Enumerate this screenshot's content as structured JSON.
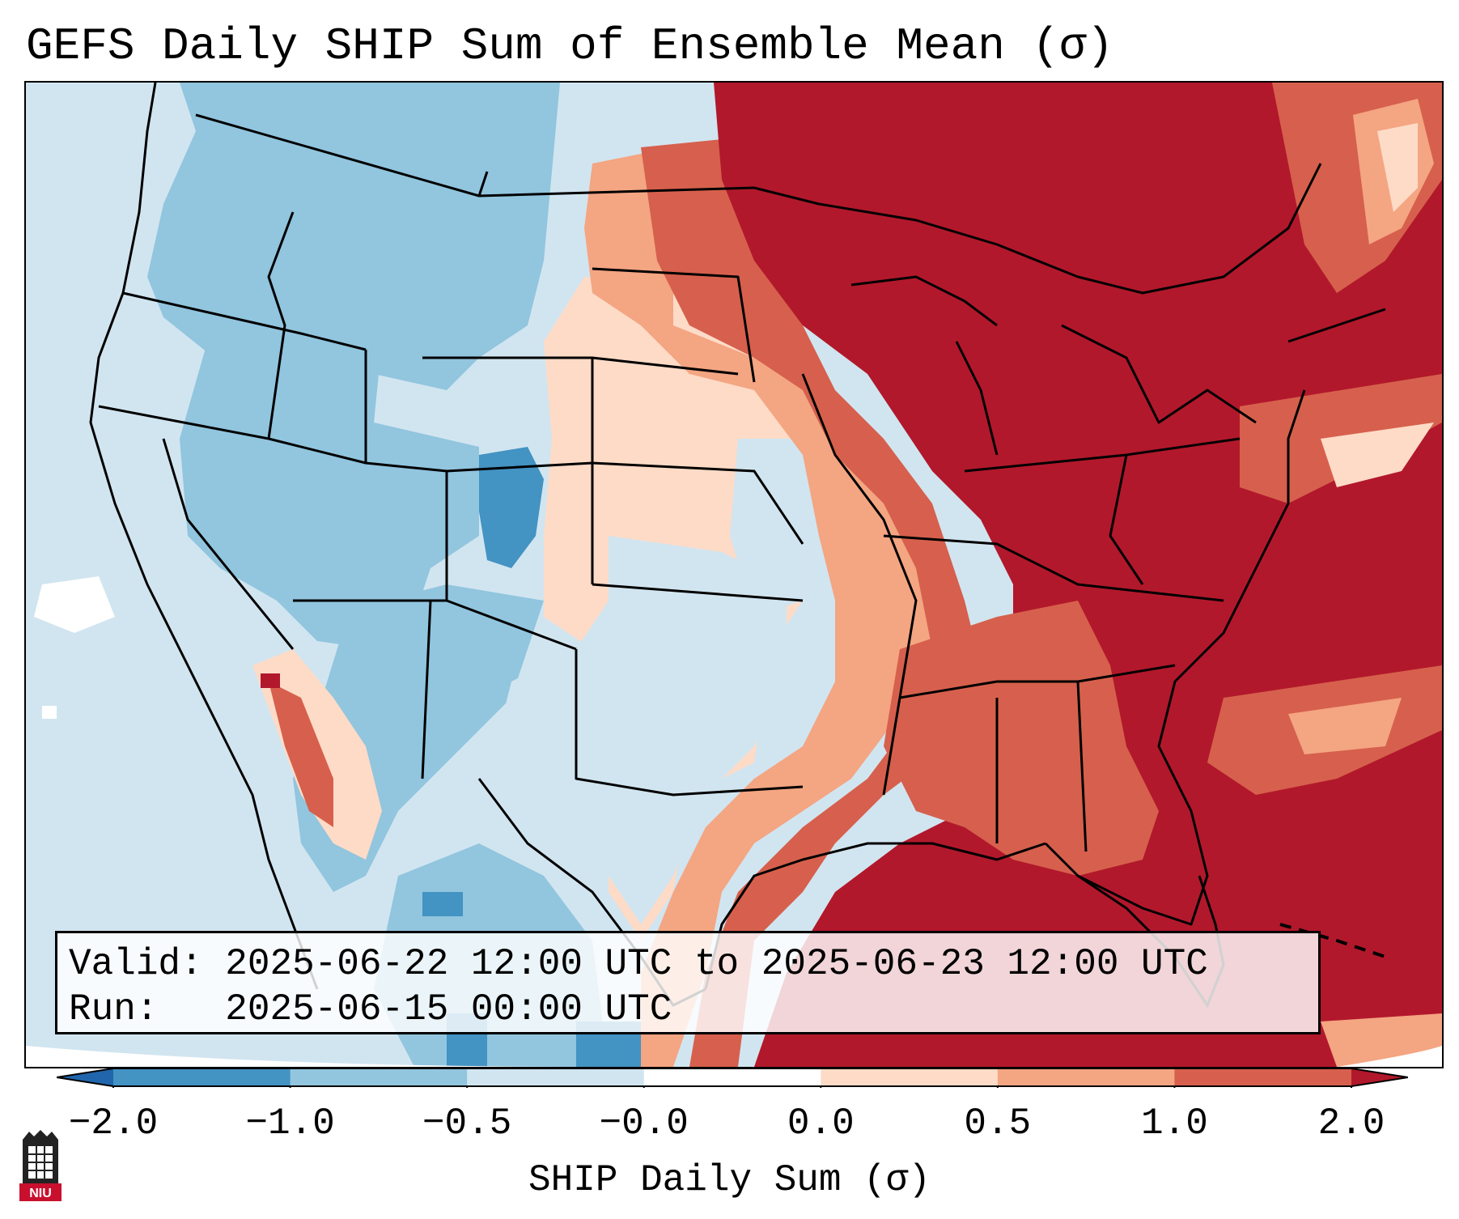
{
  "title": "GEFS Daily SHIP Sum of Ensemble Mean (σ)",
  "info": {
    "valid_label": "Valid:",
    "valid_range": "2025-06-22 12:00 UTC to 2025-06-23 12:00 UTC",
    "run_label": "Run:",
    "run_time": "2025-06-15 00:00 UTC"
  },
  "colorbar": {
    "label": "SHIP Daily Sum (σ)",
    "ticks": [
      "−2.0",
      "−1.0",
      "−0.5",
      "−0.0",
      "0.0",
      "0.5",
      "1.0",
      "2.0"
    ],
    "bins": [
      {
        "range": "< -2.0",
        "color": "#2166ac"
      },
      {
        "range": "-2.0 to -1.0",
        "color": "#4393c3"
      },
      {
        "range": "-1.0 to -0.5",
        "color": "#92c5de"
      },
      {
        "range": "-0.5 to -0.0",
        "color": "#d1e5f0"
      },
      {
        "range": "-0.0 to 0.0",
        "color": "#ffffff"
      },
      {
        "range": "0.0 to 0.5",
        "color": "#fddbc7"
      },
      {
        "range": "0.5 to 1.0",
        "color": "#f4a582"
      },
      {
        "range": "1.0 to 2.0",
        "color": "#d6604d"
      },
      {
        "range": "> 2.0",
        "color": "#b2182b"
      }
    ]
  },
  "map": {
    "region": "Contiguous United States",
    "field": "SHIP daily sum anomaly (σ)",
    "regions": [
      {
        "name": "Pacific Ocean / West Coast",
        "bin": "-0.5 to -0.0"
      },
      {
        "name": "Northern Rockies / Idaho / Montana",
        "bin": "-1.0 to -0.5"
      },
      {
        "name": "Colorado core",
        "bin": "-2.0 to -1.0"
      },
      {
        "name": "Northern Plains (Dakotas)",
        "bin": "0.5 to 1.0"
      },
      {
        "name": "Upper Midwest / Great Lakes / Northeast",
        "bin": "> 2.0"
      },
      {
        "name": "Ohio Valley / Southeast",
        "bin": "> 2.0"
      },
      {
        "name": "Central Plains (Nebraska / Kansas)",
        "bin": "0.0 to 0.5"
      },
      {
        "name": "Texas / Oklahoma",
        "bin": "-0.5 to -0.0"
      },
      {
        "name": "Gulf Coast / Deep South",
        "bin": "1.0 to 2.0"
      },
      {
        "name": "Gulf of Mexico / Western Atlantic",
        "bin": "> 2.0"
      },
      {
        "name": "Southern California / Arizona border",
        "bin": "0.0 to 0.5"
      }
    ]
  },
  "logo": {
    "text": "NIU",
    "color": "#c8102e"
  }
}
